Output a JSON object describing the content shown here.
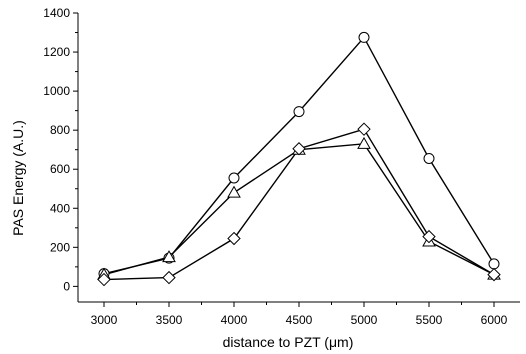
{
  "chart_data": {
    "type": "line",
    "title": "",
    "xlabel": "distance to PZT (μm)",
    "ylabel": "PAS Energy (A.U.)",
    "xlim": [
      2800,
      6200
    ],
    "ylim": [
      -80,
      1400
    ],
    "x_ticks": [
      3000,
      3500,
      4000,
      4500,
      5000,
      5500,
      6000
    ],
    "y_ticks": [
      0,
      200,
      400,
      600,
      800,
      1000,
      1200,
      1400
    ],
    "grid": false,
    "x": [
      3000,
      3500,
      4000,
      4500,
      5000,
      5500,
      6000
    ],
    "series": [
      {
        "marker": "circle",
        "values": [
          65,
          145,
          555,
          895,
          1275,
          655,
          115
        ]
      },
      {
        "marker": "triangle",
        "values": [
          60,
          150,
          480,
          700,
          730,
          230,
          60
        ]
      },
      {
        "marker": "diamond",
        "values": [
          35,
          45,
          245,
          705,
          805,
          255,
          60
        ]
      }
    ]
  }
}
